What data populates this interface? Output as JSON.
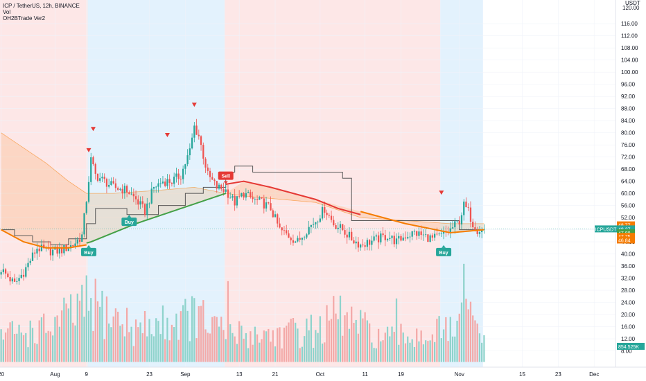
{
  "legend": {
    "symbol_line": "ICP / TetherUS, 12h, BINANCE",
    "vol_label": "Vol",
    "indicator_label": "OH2BTrade Ver2"
  },
  "currency": "USDT",
  "colors": {
    "up": "#26a69a",
    "down": "#ef5350",
    "red_zone": "#fde7e7",
    "blue_zone": "#e3f2fd",
    "orange": "#f57c00",
    "green": "#43a047",
    "red_line": "#e53935",
    "stop_line": "#555555",
    "vol_up": "#8fd3cc",
    "vol_down": "#f3a9a8"
  },
  "chart_data": {
    "type": "candlestick",
    "symbol": "ICP / TetherUS",
    "interval": "12h",
    "exchange": "BINANCE",
    "ylim": [
      4,
      122
    ],
    "y_ticks": [
      8,
      12,
      16,
      20,
      24,
      28,
      32,
      36,
      40,
      44,
      48,
      52,
      56,
      60,
      64,
      68,
      72,
      76,
      80,
      84,
      88,
      92,
      96,
      100,
      104,
      108,
      112,
      116
    ],
    "x_ticks": [
      {
        "label": "20",
        "i": 0
      },
      {
        "label": "Aug",
        "i": 24
      },
      {
        "label": "9",
        "i": 38
      },
      {
        "label": "23",
        "i": 66
      },
      {
        "label": "Sep",
        "i": 82
      },
      {
        "label": "13",
        "i": 106
      },
      {
        "label": "21",
        "i": 122
      },
      {
        "label": "Oct",
        "i": 142
      },
      {
        "label": "11",
        "i": 162
      },
      {
        "label": "19",
        "i": 178
      },
      {
        "label": "Nov",
        "i": 204
      },
      {
        "label": "15",
        "i": 232
      },
      {
        "label": "23",
        "i": 248
      },
      {
        "label": "Dec",
        "i": 264
      }
    ],
    "bar_count": 216,
    "x_slots": 274,
    "anchors": [
      [
        0,
        35
      ],
      [
        6,
        30
      ],
      [
        10,
        34
      ],
      [
        16,
        42
      ],
      [
        20,
        41
      ],
      [
        26,
        41
      ],
      [
        32,
        43
      ],
      [
        36,
        46
      ],
      [
        38,
        58
      ],
      [
        40,
        71
      ],
      [
        42,
        66
      ],
      [
        46,
        64
      ],
      [
        50,
        62
      ],
      [
        56,
        61
      ],
      [
        60,
        58
      ],
      [
        64,
        54
      ],
      [
        68,
        62
      ],
      [
        72,
        64
      ],
      [
        76,
        64
      ],
      [
        80,
        66
      ],
      [
        84,
        74
      ],
      [
        86,
        82
      ],
      [
        88,
        79
      ],
      [
        92,
        66
      ],
      [
        96,
        62
      ],
      [
        100,
        61
      ],
      [
        104,
        57
      ],
      [
        108,
        60
      ],
      [
        112,
        58
      ],
      [
        116,
        57
      ],
      [
        120,
        55
      ],
      [
        124,
        48
      ],
      [
        128,
        46
      ],
      [
        132,
        44
      ],
      [
        136,
        48
      ],
      [
        140,
        51
      ],
      [
        144,
        55
      ],
      [
        148,
        50
      ],
      [
        152,
        48
      ],
      [
        156,
        45
      ],
      [
        160,
        43
      ],
      [
        164,
        44
      ],
      [
        168,
        45
      ],
      [
        172,
        46
      ],
      [
        176,
        44
      ],
      [
        180,
        46
      ],
      [
        184,
        47
      ],
      [
        188,
        46
      ],
      [
        192,
        45
      ],
      [
        196,
        46
      ],
      [
        200,
        48
      ],
      [
        204,
        51
      ],
      [
        206,
        56
      ],
      [
        208,
        54
      ],
      [
        210,
        50
      ],
      [
        212,
        48
      ],
      [
        215,
        48
      ]
    ],
    "volume_anchors": [
      [
        0,
        12
      ],
      [
        20,
        14
      ],
      [
        38,
        24
      ],
      [
        40,
        25
      ],
      [
        60,
        14
      ],
      [
        86,
        20
      ],
      [
        100,
        12
      ],
      [
        122,
        12
      ],
      [
        142,
        14
      ],
      [
        150,
        20
      ],
      [
        170,
        10
      ],
      [
        204,
        14
      ],
      [
        206,
        22
      ],
      [
        215,
        10
      ]
    ],
    "ema_orange_anchors": [
      [
        0,
        48
      ],
      [
        10,
        44
      ],
      [
        20,
        42
      ],
      [
        30,
        42
      ],
      [
        38,
        43
      ],
      [
        60,
        50
      ],
      [
        80,
        55
      ],
      [
        100,
        60
      ],
      [
        108,
        64
      ],
      [
        120,
        62
      ],
      [
        140,
        58
      ],
      [
        160,
        54
      ],
      [
        180,
        50
      ],
      [
        200,
        47
      ],
      [
        215,
        48
      ]
    ],
    "ema_green_anchors": [
      [
        0,
        48
      ],
      [
        10,
        44
      ],
      [
        20,
        42
      ],
      [
        30,
        42
      ],
      [
        40,
        44
      ],
      [
        60,
        50
      ],
      [
        80,
        55
      ],
      [
        100,
        60
      ],
      [
        108,
        64
      ],
      [
        120,
        62
      ],
      [
        140,
        58
      ],
      [
        160,
        54
      ],
      [
        180,
        50
      ],
      [
        200,
        47
      ],
      [
        215,
        48
      ]
    ],
    "ema_red_anchors": [
      [
        100,
        63
      ],
      [
        108,
        64
      ],
      [
        120,
        62
      ],
      [
        140,
        58
      ],
      [
        150,
        55
      ],
      [
        160,
        53
      ],
      [
        180,
        49
      ],
      [
        200,
        47
      ],
      [
        215,
        48
      ]
    ],
    "band_top_anchors": [
      [
        0,
        80
      ],
      [
        10,
        75
      ],
      [
        20,
        70
      ],
      [
        30,
        64
      ],
      [
        38,
        60
      ],
      [
        50,
        60
      ],
      [
        70,
        61
      ],
      [
        86,
        62
      ],
      [
        100,
        60
      ],
      [
        110,
        59
      ],
      [
        140,
        57
      ],
      [
        160,
        52
      ],
      [
        180,
        51
      ],
      [
        200,
        50
      ],
      [
        215,
        50
      ]
    ],
    "stop_line": [
      [
        0,
        48
      ],
      [
        6,
        48
      ],
      [
        6,
        46
      ],
      [
        14,
        46
      ],
      [
        14,
        44
      ],
      [
        22,
        44
      ],
      [
        22,
        43
      ],
      [
        30,
        43
      ],
      [
        30,
        45
      ],
      [
        38,
        45
      ],
      [
        38,
        50
      ],
      [
        42,
        50
      ],
      [
        42,
        55
      ],
      [
        56,
        55
      ],
      [
        56,
        53
      ],
      [
        70,
        53
      ],
      [
        70,
        56
      ],
      [
        82,
        56
      ],
      [
        82,
        60
      ],
      [
        90,
        60
      ],
      [
        90,
        62
      ],
      [
        100,
        62
      ],
      [
        100,
        67
      ],
      [
        104,
        67
      ],
      [
        104,
        69
      ],
      [
        112,
        69
      ],
      [
        112,
        67
      ],
      [
        152,
        67
      ],
      [
        152,
        65
      ],
      [
        156,
        65
      ],
      [
        156,
        51
      ],
      [
        204,
        51
      ],
      [
        204,
        48
      ],
      [
        215,
        48
      ]
    ],
    "zones": [
      {
        "from": 0,
        "to": 39,
        "type": "sell"
      },
      {
        "from": 39,
        "to": 100,
        "type": "buy"
      },
      {
        "from": 100,
        "to": 196,
        "type": "sell"
      },
      {
        "from": 196,
        "to": 215,
        "type": "buy"
      }
    ],
    "signals": [
      {
        "i": 39,
        "price": 42,
        "label": "Buy",
        "type": "buy"
      },
      {
        "i": 57,
        "price": 52,
        "label": "Buy",
        "type": "buy"
      },
      {
        "i": 100,
        "price": 64,
        "label": "Sell",
        "type": "sell"
      },
      {
        "i": 197,
        "price": 42,
        "label": "Buy",
        "type": "buy"
      }
    ],
    "triangles": [
      {
        "i": 39,
        "price": 74
      },
      {
        "i": 41,
        "price": 81
      },
      {
        "i": 74,
        "price": 79
      },
      {
        "i": 86,
        "price": 89
      },
      {
        "i": 196,
        "price": 60
      }
    ],
    "price_tags": [
      {
        "label": "ICPUSDT",
        "value": "48.27",
        "side": "left",
        "color": "#26a69a"
      },
      {
        "label": "",
        "value": "48.77",
        "color": "#f57c00"
      },
      {
        "label": "",
        "value": "48.27",
        "color": "#26a69a"
      },
      {
        "label": "",
        "value": "47.88",
        "color": "#43a047"
      },
      {
        "label": "",
        "value": "47.75",
        "color": "#f57c00"
      },
      {
        "label": "",
        "value": "46.84",
        "color": "#f57c00"
      },
      {
        "label": "",
        "value": "854.525K",
        "color": "#26a69a"
      }
    ],
    "top_tick_partial": "120.00"
  }
}
